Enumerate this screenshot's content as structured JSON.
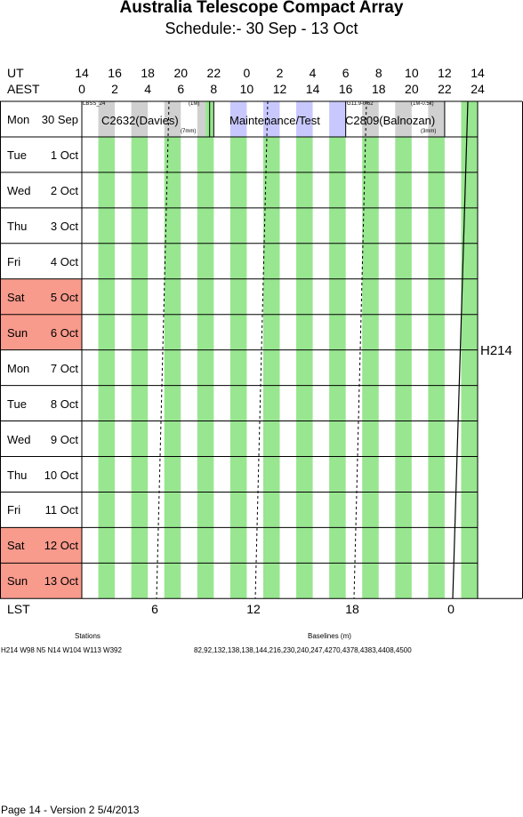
{
  "header": {
    "title": "Australia Telescope Compact Array",
    "subtitle": "Schedule:- 30 Sep - 13 Oct"
  },
  "axis": {
    "ut_label": "UT",
    "aest_label": "AEST",
    "lst_label": "LST",
    "ut_ticks": [
      "14",
      "16",
      "18",
      "20",
      "22",
      "0",
      "2",
      "4",
      "6",
      "8",
      "10",
      "12",
      "14"
    ],
    "aest_ticks": [
      "0",
      "2",
      "4",
      "6",
      "8",
      "10",
      "12",
      "14",
      "16",
      "18",
      "20",
      "22",
      "24"
    ],
    "lst_ticks": [
      "6",
      "12",
      "18",
      "0"
    ]
  },
  "days": [
    {
      "name": "Mon",
      "date": "30 Sep",
      "weekend": false
    },
    {
      "name": "Tue",
      "date": "1  Oct",
      "weekend": false
    },
    {
      "name": "Wed",
      "date": "2  Oct",
      "weekend": false
    },
    {
      "name": "Thu",
      "date": "3  Oct",
      "weekend": false
    },
    {
      "name": "Fri",
      "date": "4  Oct",
      "weekend": false
    },
    {
      "name": "Sat",
      "date": "5  Oct",
      "weekend": true
    },
    {
      "name": "Sun",
      "date": "6  Oct",
      "weekend": true
    },
    {
      "name": "Mon",
      "date": "7  Oct",
      "weekend": false
    },
    {
      "name": "Tue",
      "date": "8  Oct",
      "weekend": false
    },
    {
      "name": "Wed",
      "date": "9  Oct",
      "weekend": false
    },
    {
      "name": "Thu",
      "date": "10  Oct",
      "weekend": false
    },
    {
      "name": "Fri",
      "date": "11  Oct",
      "weekend": false
    },
    {
      "name": "Sat",
      "date": "12  Oct",
      "weekend": true
    },
    {
      "name": "Sun",
      "date": "13  Oct",
      "weekend": true
    }
  ],
  "blocks": {
    "lbss": {
      "code": "LBSS_24"
    },
    "c2632": {
      "code": "C2632(Davies)",
      "config": "(1M)",
      "band": "(7mm)"
    },
    "maint": {
      "code": "Maintenance/Test"
    },
    "g11": {
      "code": "G11.9-0.62"
    },
    "c2809": {
      "code": "C2809(Balnozan)",
      "config": "(1M-0.5k)",
      "band": "(3mm)"
    }
  },
  "array_config": "H214",
  "stations": {
    "heading": "Stations",
    "text": "H214   W98 N5 N14 W104 W113 W392"
  },
  "baselines": {
    "heading": "Baselines (m)",
    "text": "82,92,132,138,138,144,216,230,240,247,4270,4378,4383,4408,4500"
  },
  "footer": "Page 14 - Version 2  5/4/2013",
  "colors": {
    "green": "#98e690",
    "gray": "#d0d0d0",
    "lavender": "#c8c8ff",
    "weekend": "#f89a8c"
  }
}
